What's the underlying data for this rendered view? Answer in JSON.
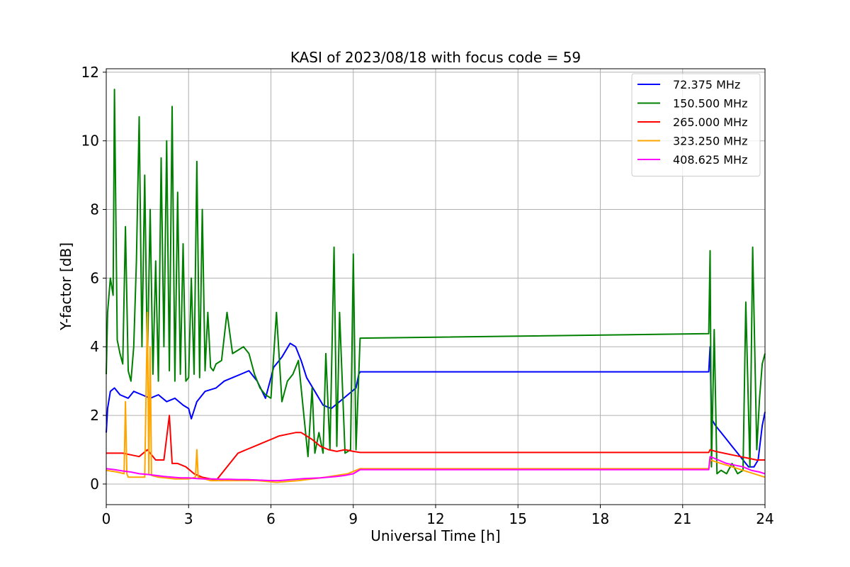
{
  "chart_data": {
    "type": "line",
    "title": "KASI of 2023/08/18 with focus code = 59",
    "xlabel": "Universal Time [h]",
    "ylabel": "Y-factor [dB]",
    "xlim": [
      0,
      24
    ],
    "ylim": [
      -0.6,
      12.1
    ],
    "xticks": [
      0,
      3,
      6,
      9,
      12,
      15,
      18,
      21,
      24
    ],
    "yticks": [
      0,
      2,
      4,
      6,
      8,
      10,
      12
    ],
    "grid": true,
    "legend_position": "top-right",
    "series": [
      {
        "name": " 72.375 MHz",
        "color": "#0000ff",
        "x": [
          0,
          0.05,
          0.15,
          0.3,
          0.5,
          0.8,
          1.0,
          1.3,
          1.6,
          1.9,
          2.2,
          2.5,
          2.8,
          3.0,
          3.1,
          3.3,
          3.6,
          4.0,
          4.3,
          4.6,
          4.9,
          5.2,
          5.5,
          5.8,
          6.1,
          6.4,
          6.7,
          6.9,
          7.1,
          7.3,
          7.6,
          7.9,
          8.2,
          8.5,
          8.8,
          9.1,
          9.2,
          9.25,
          21.95,
          22.0,
          22.05,
          22.2,
          22.4,
          22.6,
          22.8,
          23.0,
          23.2,
          23.4,
          23.6,
          23.75,
          23.9,
          24
        ],
        "y": [
          1.5,
          2.2,
          2.7,
          2.8,
          2.6,
          2.5,
          2.7,
          2.6,
          2.5,
          2.6,
          2.4,
          2.5,
          2.3,
          2.2,
          1.9,
          2.4,
          2.7,
          2.8,
          3.0,
          3.1,
          3.2,
          3.3,
          3.0,
          2.5,
          3.4,
          3.7,
          4.1,
          4.0,
          3.6,
          3.1,
          2.7,
          2.3,
          2.2,
          2.4,
          2.6,
          2.8,
          3.2,
          3.27,
          3.27,
          4.0,
          1.9,
          1.7,
          1.5,
          1.3,
          1.1,
          0.9,
          0.7,
          0.5,
          0.5,
          0.7,
          1.7,
          2.1
        ]
      },
      {
        "name": "150.500 MHz",
        "color": "#008000",
        "x": [
          0,
          0.05,
          0.15,
          0.25,
          0.3,
          0.4,
          0.5,
          0.6,
          0.7,
          0.8,
          0.9,
          1.0,
          1.1,
          1.2,
          1.3,
          1.4,
          1.5,
          1.6,
          1.7,
          1.8,
          1.9,
          2.0,
          2.1,
          2.2,
          2.3,
          2.4,
          2.5,
          2.6,
          2.7,
          2.8,
          2.9,
          3.0,
          3.1,
          3.2,
          3.3,
          3.4,
          3.5,
          3.6,
          3.7,
          3.8,
          3.9,
          4.0,
          4.2,
          4.4,
          4.6,
          4.8,
          5.0,
          5.2,
          5.4,
          5.6,
          5.8,
          6.0,
          6.2,
          6.4,
          6.6,
          6.8,
          7.0,
          7.2,
          7.35,
          7.5,
          7.6,
          7.75,
          7.9,
          8.0,
          8.15,
          8.3,
          8.4,
          8.5,
          8.7,
          8.9,
          9.0,
          9.1,
          9.2,
          9.25,
          21.95,
          22.0,
          22.05,
          22.15,
          22.25,
          22.4,
          22.6,
          22.8,
          23.0,
          23.2,
          23.3,
          23.45,
          23.55,
          23.7,
          23.8,
          23.9,
          24
        ],
        "y": [
          3.2,
          5.0,
          6.0,
          5.5,
          11.5,
          4.2,
          3.8,
          3.5,
          7.5,
          3.3,
          3.0,
          4.0,
          6.5,
          10.7,
          4.0,
          9.0,
          3.5,
          8.0,
          3.2,
          6.5,
          3.0,
          9.5,
          4.0,
          10.0,
          3.3,
          11.0,
          3.0,
          8.5,
          3.2,
          7.0,
          3.0,
          3.1,
          6.0,
          3.2,
          9.4,
          3.1,
          8.0,
          3.3,
          5.0,
          3.4,
          3.3,
          3.5,
          3.6,
          5.0,
          3.8,
          3.9,
          4.0,
          3.8,
          3.2,
          2.8,
          2.6,
          2.5,
          5.0,
          2.4,
          3.0,
          3.2,
          3.6,
          2.0,
          0.8,
          2.8,
          0.9,
          1.5,
          0.9,
          3.8,
          1.0,
          6.9,
          1.1,
          5.0,
          0.9,
          1.0,
          6.7,
          1.0,
          3.2,
          4.25,
          4.38,
          6.8,
          0.5,
          4.5,
          0.3,
          0.4,
          0.3,
          0.6,
          0.3,
          0.4,
          5.3,
          0.5,
          6.9,
          1.0,
          2.5,
          3.5,
          3.8
        ]
      },
      {
        "name": "265.000 MHz",
        "color": "#ff0000",
        "x": [
          0,
          0.3,
          0.6,
          0.9,
          1.2,
          1.5,
          1.8,
          2.1,
          2.3,
          2.4,
          2.6,
          2.9,
          3.2,
          3.5,
          3.8,
          4.0,
          4.2,
          4.5,
          4.8,
          5.1,
          5.4,
          5.7,
          6.0,
          6.3,
          6.6,
          6.9,
          7.1,
          7.3,
          7.5,
          7.8,
          8.1,
          8.4,
          8.7,
          9.0,
          9.25,
          21.95,
          22.0,
          22.2,
          22.5,
          22.8,
          23.1,
          23.4,
          23.7,
          24
        ],
        "y": [
          0.9,
          0.9,
          0.9,
          0.85,
          0.8,
          1.0,
          0.7,
          0.7,
          2.0,
          0.6,
          0.6,
          0.5,
          0.3,
          0.2,
          0.15,
          0.1,
          0.3,
          0.6,
          0.9,
          1.0,
          1.1,
          1.2,
          1.3,
          1.4,
          1.45,
          1.5,
          1.5,
          1.4,
          1.3,
          1.1,
          1.0,
          0.95,
          1.0,
          0.95,
          0.92,
          0.92,
          1.0,
          0.95,
          0.9,
          0.85,
          0.8,
          0.75,
          0.7,
          0.7
        ]
      },
      {
        "name": "323.250 MHz",
        "color": "#ffa500",
        "x": [
          0,
          0.4,
          0.65,
          0.7,
          0.75,
          0.8,
          1.0,
          1.4,
          1.5,
          1.55,
          1.6,
          1.65,
          1.9,
          2.5,
          3.0,
          3.25,
          3.3,
          3.35,
          3.8,
          4.5,
          5.5,
          6.2,
          7.0,
          8.0,
          8.8,
          9.25,
          21.95,
          22.0,
          22.4,
          22.8,
          23.2,
          23.6,
          24
        ],
        "y": [
          0.4,
          0.35,
          0.3,
          2.4,
          0.3,
          0.2,
          0.2,
          0.2,
          5.0,
          0.3,
          4.0,
          0.25,
          0.2,
          0.15,
          0.15,
          0.2,
          1.0,
          0.2,
          0.1,
          0.1,
          0.1,
          0.05,
          0.1,
          0.2,
          0.3,
          0.45,
          0.45,
          0.7,
          0.6,
          0.5,
          0.4,
          0.3,
          0.2
        ]
      },
      {
        "name": "408.625 MHz",
        "color": "#ff00ff",
        "x": [
          0,
          0.3,
          0.6,
          0.9,
          1.2,
          1.5,
          1.8,
          2.1,
          2.4,
          2.7,
          3.0,
          3.3,
          3.6,
          3.9,
          4.2,
          4.5,
          4.8,
          5.1,
          5.4,
          5.7,
          6.0,
          6.3,
          6.6,
          6.9,
          7.2,
          7.5,
          7.8,
          8.1,
          8.4,
          8.7,
          9.0,
          9.25,
          21.95,
          22.0,
          22.3,
          22.6,
          22.9,
          23.2,
          23.5,
          23.8,
          24
        ],
        "y": [
          0.45,
          0.42,
          0.38,
          0.35,
          0.3,
          0.28,
          0.25,
          0.22,
          0.2,
          0.18,
          0.18,
          0.16,
          0.15,
          0.15,
          0.14,
          0.14,
          0.13,
          0.13,
          0.12,
          0.11,
          0.1,
          0.1,
          0.12,
          0.14,
          0.16,
          0.17,
          0.18,
          0.2,
          0.22,
          0.25,
          0.3,
          0.42,
          0.42,
          0.8,
          0.7,
          0.6,
          0.55,
          0.5,
          0.4,
          0.35,
          0.3
        ]
      }
    ]
  }
}
